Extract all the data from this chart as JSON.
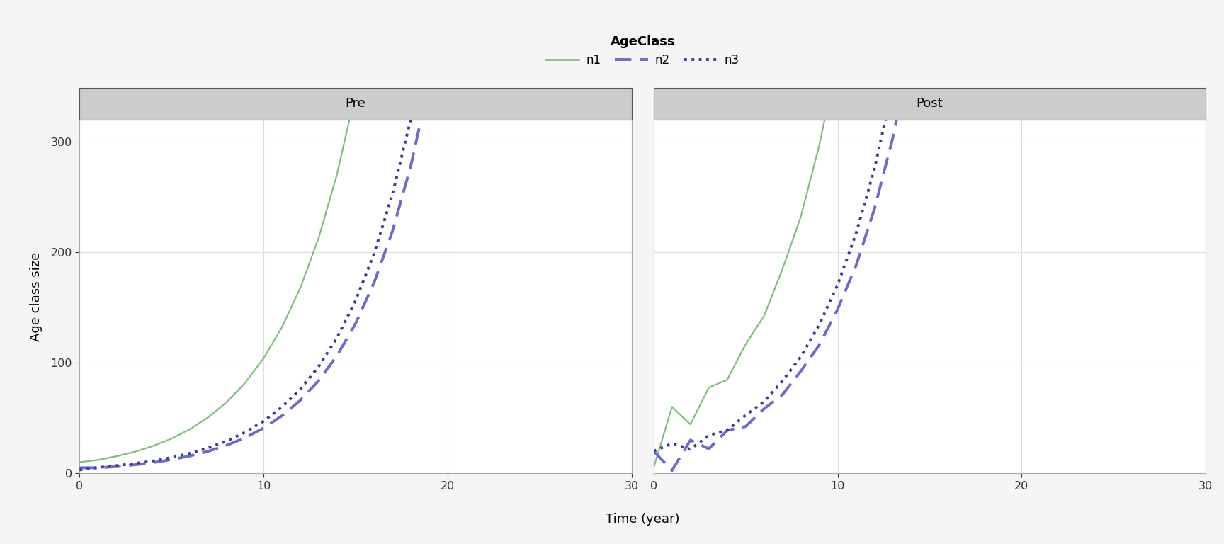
{
  "title_pre": "Pre",
  "title_post": "Post",
  "xlabel": "Time (year)",
  "ylabel": "Age class size",
  "legend_title": "AgeClass",
  "legend_labels": [
    "n1",
    "n2",
    "n3"
  ],
  "n1_color": "#7fbf7b",
  "n2_color": "#6b6bcc",
  "n3_color": "#3b3b99",
  "n1_linewidth": 1.6,
  "n2_linewidth": 2.8,
  "n3_linewidth": 2.8,
  "ylim": [
    0,
    320
  ],
  "xlim": [
    0,
    30
  ],
  "yticks": [
    0,
    100,
    200,
    300
  ],
  "xticks": [
    0,
    10,
    20,
    30
  ],
  "background_color": "#f5f5f5",
  "panel_bg": "#ffffff",
  "header_bg": "#cccccc",
  "grid_color": "#dddddd",
  "time_steps": 31
}
